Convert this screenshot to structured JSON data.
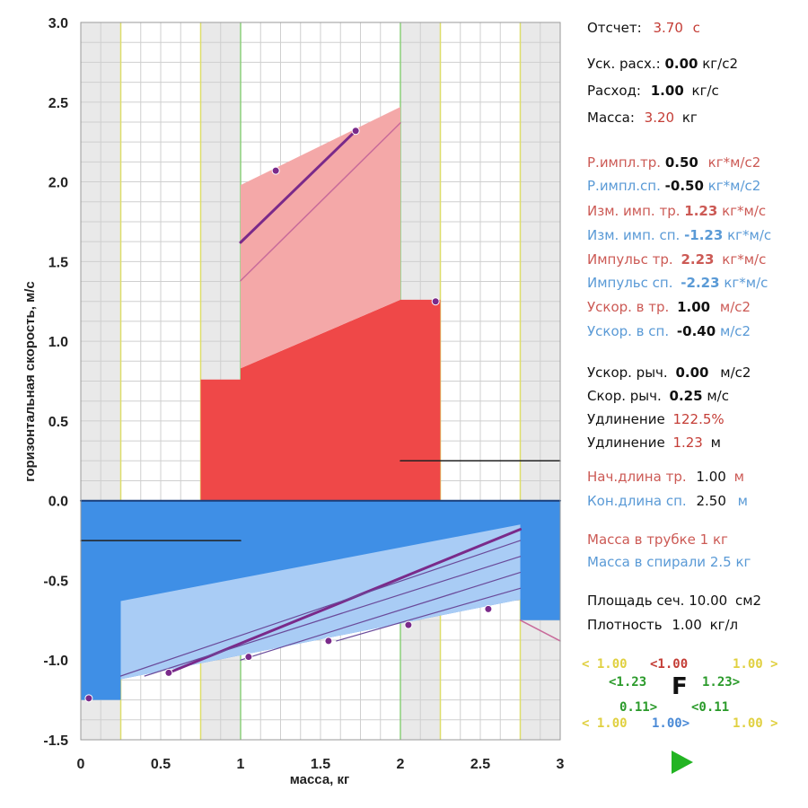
{
  "chart_data": {
    "type": "area",
    "xlabel": "масса, кг",
    "ylabel": "горизонтальная скорость, м/с",
    "xlim": [
      0,
      3
    ],
    "ylim": [
      -1.5,
      3.0
    ],
    "xticks": [
      "0",
      "0.5",
      "1",
      "1.5",
      "2",
      "2.5",
      "3"
    ],
    "yticks": [
      "3.0",
      "2.5",
      "2.0",
      "1.5",
      "1.0",
      "0.5",
      "0.0",
      "-0.5",
      "-1.0",
      "-1.5"
    ],
    "grid": true,
    "shaded_bands": [
      [
        0,
        0.25
      ],
      [
        0.75,
        1.0
      ],
      [
        2.0,
        2.25
      ],
      [
        2.75,
        3.0
      ]
    ],
    "band_lines": {
      "yellow": [
        0.25,
        0.75,
        2.25,
        2.75
      ],
      "green": [
        1.0,
        2.0
      ]
    },
    "series": [
      {
        "color": "#ef4848",
        "points": [
          [
            0.75,
            0
          ],
          [
            0.75,
            0.76
          ],
          [
            1.0,
            0.76
          ],
          [
            1.0,
            0.83
          ],
          [
            2.0,
            1.26
          ],
          [
            2.25,
            1.26
          ],
          [
            2.25,
            0
          ]
        ]
      },
      {
        "color": "#f4a8a8",
        "points": [
          [
            1.0,
            0.83
          ],
          [
            1.0,
            1.98
          ],
          [
            2.0,
            2.47
          ],
          [
            2.0,
            1.26
          ]
        ]
      },
      {
        "color": "#3f8fe6",
        "points": [
          [
            0,
            0
          ],
          [
            3,
            0
          ],
          [
            3,
            -0.75
          ],
          [
            2.75,
            -0.75
          ],
          [
            2.75,
            -0.62
          ],
          [
            0.25,
            -1.12
          ],
          [
            0.25,
            -1.25
          ],
          [
            0,
            -1.25
          ]
        ]
      },
      {
        "color": "#a9ccf5",
        "points": [
          [
            0.25,
            -0.63
          ],
          [
            2.75,
            -0.15
          ],
          [
            2.75,
            -0.62
          ],
          [
            0.25,
            -1.12
          ]
        ]
      }
    ],
    "lines": [
      {
        "color": "#7a2a8a",
        "width": 3,
        "points": [
          [
            1.0,
            1.62
          ],
          [
            1.72,
            2.32
          ]
        ]
      },
      {
        "color": "#c86a9a",
        "width": 1.5,
        "points": [
          [
            1.0,
            1.38
          ],
          [
            2.0,
            2.37
          ]
        ]
      },
      {
        "color": "#7a2a8a",
        "width": 3,
        "points": [
          [
            0.55,
            -1.08
          ],
          [
            2.75,
            -0.18
          ]
        ]
      },
      {
        "color": "#6a4a9a",
        "width": 1.2,
        "points": [
          [
            0.25,
            -1.1
          ],
          [
            2.75,
            -0.25
          ]
        ]
      },
      {
        "color": "#6a4a9a",
        "width": 1.2,
        "points": [
          [
            0.4,
            -1.1
          ],
          [
            2.75,
            -0.35
          ]
        ]
      },
      {
        "color": "#6a4a9a",
        "width": 1.2,
        "points": [
          [
            1.0,
            -1.0
          ],
          [
            2.75,
            -0.45
          ]
        ]
      },
      {
        "color": "#6a4a9a",
        "width": 1.2,
        "points": [
          [
            1.6,
            -0.88
          ],
          [
            2.75,
            -0.55
          ]
        ]
      },
      {
        "color": "#c86a9a",
        "width": 1.5,
        "points": [
          [
            2.75,
            -0.75
          ],
          [
            3.0,
            -0.88
          ]
        ]
      },
      {
        "color": "#222222",
        "width": 1.5,
        "points": [
          [
            0,
            -0.25
          ],
          [
            1.0,
            -0.25
          ]
        ]
      },
      {
        "color": "#222222",
        "width": 1.5,
        "points": [
          [
            2.0,
            0.25
          ],
          [
            3.0,
            0.25
          ]
        ]
      },
      {
        "color": "#1a3f7a",
        "width": 2,
        "points": [
          [
            0,
            0
          ],
          [
            3,
            0
          ]
        ]
      }
    ],
    "markers": [
      {
        "x": 1.22,
        "y": 2.07
      },
      {
        "x": 1.72,
        "y": 2.32
      },
      {
        "x": 2.22,
        "y": 1.25
      },
      {
        "x": 0.05,
        "y": -1.24
      },
      {
        "x": 0.55,
        "y": -1.08
      },
      {
        "x": 1.05,
        "y": -0.98
      },
      {
        "x": 1.55,
        "y": -0.88
      },
      {
        "x": 2.05,
        "y": -0.78
      },
      {
        "x": 2.55,
        "y": -0.68
      }
    ]
  },
  "panel": {
    "report_label": "Отсчет:",
    "report_value": "3.70",
    "report_unit": "с",
    "acc_label": "Уск. расх.:",
    "acc_value": "0.00",
    "acc_unit": "кг/с2",
    "flow_label": "Расход:",
    "flow_value": "1.00",
    "flow_unit": "кг/с",
    "mass_label": "Масса:",
    "mass_value": "3.20",
    "mass_unit": "кг",
    "r_tr_label": "Р.импл.тр.",
    "r_tr_value": "0.50",
    "r_tr_unit": "кг*м/с2",
    "r_sp_label": "Р.импл.сп.",
    "r_sp_value": "-0.50",
    "r_sp_unit": "кг*м/с2",
    "d_tr_label": "Изм. имп. тр.",
    "d_tr_value": "1.23",
    "d_tr_unit": "кг*м/с",
    "d_sp_label": "Изм. имп. сп.",
    "d_sp_value": "-1.23",
    "d_sp_unit": "кг*м/с",
    "p_tr_label": "Импульс тр.",
    "p_tr_value": "2.23",
    "p_tr_unit": "кг*м/с",
    "p_sp_label": "Импульс сп.",
    "p_sp_value": "-2.23",
    "p_sp_unit": "кг*м/с",
    "a_tr_label": "Ускор. в тр.",
    "a_tr_value": "1.00",
    "a_tr_unit": "м/с2",
    "a_sp_label": "Ускор. в сп.",
    "a_sp_value": "-0.40",
    "a_sp_unit": "м/с2",
    "lever_acc_label": "Ускор. рыч.",
    "lever_acc_value": "0.00",
    "lever_acc_unit": "м/с2",
    "lever_vel_label": "Скор. рыч.",
    "lever_vel_value": "0.25",
    "lever_vel_unit": "м/с",
    "ext_pct_label": "Удлинение",
    "ext_pct_value": "122.5%",
    "ext_m_label": "Удлинение",
    "ext_m_value": "1.23",
    "ext_m_unit": "м",
    "start_len_label": "Нач.длина тр.",
    "start_len_value": "1.00",
    "start_len_unit": "м",
    "end_len_label": "Кон.длина сп.",
    "end_len_value": "2.50",
    "end_len_unit": "м",
    "mass_tube": "Масса в трубке 1 кг",
    "mass_spiral": "Масса в спирали 2.5 кг",
    "area_label": "Площадь сеч.",
    "area_value": "10.00",
    "area_unit": "см2",
    "density_label": "Плотность",
    "density_value": "1.00",
    "density_unit": "кг/л",
    "f_label": "F",
    "vec": {
      "r1a": "< 1.00",
      "r1b": "<1.00",
      "r1c": "1.00 >",
      "r2a": "<1.23",
      "r2b": "1.23>",
      "r3a": "0.11>",
      "r3b": "<0.11",
      "r4a": "< 1.00",
      "r4b": "1.00>",
      "r4c": "1.00 >"
    }
  },
  "colors": {
    "red_fill": "#ef4848",
    "pink_fill": "#f4a8a8",
    "blue_fill": "#3f8fe6",
    "light_blue": "#a9ccf5",
    "panel_red": "#cc5a55",
    "panel_blue": "#5a9ad6",
    "play_green": "#22b422"
  },
  "icons": {
    "play": "play-icon"
  }
}
